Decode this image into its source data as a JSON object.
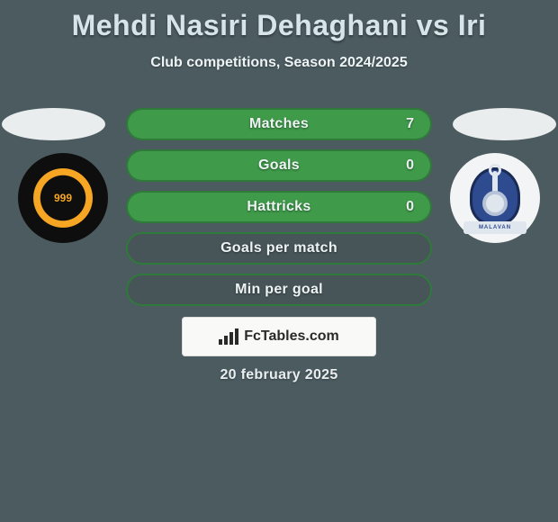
{
  "header": {
    "title": "Mehdi Nasiri Dehaghani vs Iri",
    "subtitle": "Club competitions, Season 2024/2025"
  },
  "stats": [
    {
      "label": "Matches",
      "value": "7",
      "fill_percent": 100,
      "show_value": true
    },
    {
      "label": "Goals",
      "value": "0",
      "fill_percent": 100,
      "show_value": true
    },
    {
      "label": "Hattricks",
      "value": "0",
      "fill_percent": 100,
      "show_value": true
    },
    {
      "label": "Goals per match",
      "value": "",
      "fill_percent": 0,
      "show_value": false
    },
    {
      "label": "Min per goal",
      "value": "",
      "fill_percent": 0,
      "show_value": false
    }
  ],
  "brand": {
    "text": "FcTables.com"
  },
  "footer": {
    "date": "20 february 2025"
  },
  "colors": {
    "page_bg": "#4b5b60",
    "title_color": "#d7e5ea",
    "row_fill": "#3f9a4a",
    "row_border": "#2f7a3a",
    "row_bg": "#475559",
    "ellipse_bg": "#e9edee"
  },
  "clubs": {
    "left": {
      "ribbon": ""
    },
    "right": {
      "ribbon": "MALAVAN"
    }
  }
}
